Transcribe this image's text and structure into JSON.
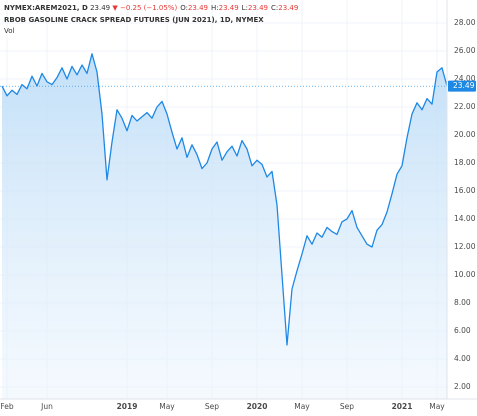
{
  "chart_data": {
    "type": "area",
    "header": {
      "symbol": "NYMEX:AREM2021, D",
      "last": "23.49",
      "change": "▼ −0.25 (−1.05%)",
      "ohlc": [
        [
          "O:",
          "23.49"
        ],
        [
          "H:",
          "23.49"
        ],
        [
          "L:",
          "23.49"
        ],
        [
          "C:",
          "23.49"
        ]
      ],
      "title": "RBOB GASOLINE CRACK SPREAD FUTURES (JUN 2021), 1D, NYMEX",
      "volume_label": "Vol"
    },
    "categories": [
      null,
      "Feb",
      null,
      null,
      null,
      null,
      null,
      null,
      null,
      "Jun",
      null,
      null,
      null,
      null,
      null,
      null,
      null,
      null,
      null,
      null,
      null,
      null,
      null,
      null,
      null,
      "2019",
      null,
      null,
      null,
      null,
      null,
      null,
      null,
      "May",
      null,
      null,
      null,
      null,
      null,
      null,
      null,
      null,
      "Sep",
      null,
      null,
      null,
      null,
      null,
      null,
      null,
      null,
      "2020",
      null,
      null,
      null,
      null,
      null,
      null,
      null,
      null,
      "May",
      null,
      null,
      null,
      null,
      null,
      null,
      null,
      null,
      "Sep",
      null,
      null,
      null,
      null,
      null,
      null,
      null,
      null,
      null,
      null,
      "2021",
      null,
      null,
      null,
      null,
      null,
      null,
      "May",
      null,
      null
    ],
    "series": [
      {
        "name": "NYMEX:AREM2021",
        "color": "#1e88e5",
        "values": [
          23.5,
          22.8,
          23.2,
          22.9,
          23.6,
          23.3,
          24.2,
          23.5,
          24.4,
          23.8,
          23.6,
          24.1,
          24.8,
          24.0,
          24.9,
          24.3,
          25.0,
          24.4,
          25.8,
          24.5,
          21.5,
          16.8,
          19.5,
          21.8,
          21.2,
          20.3,
          21.4,
          21.0,
          21.3,
          21.6,
          21.2,
          22.0,
          22.4,
          21.5,
          20.2,
          19.0,
          19.8,
          18.4,
          19.3,
          18.6,
          17.6,
          18.0,
          19.0,
          19.5,
          18.2,
          18.8,
          19.2,
          18.5,
          19.6,
          19.0,
          17.8,
          18.2,
          17.9,
          17.0,
          17.4,
          15.0,
          10.0,
          5.0,
          9.0,
          10.3,
          11.5,
          12.8,
          12.2,
          13.0,
          12.7,
          13.4,
          13.1,
          12.9,
          13.8,
          14.0,
          14.6,
          13.4,
          12.8,
          12.2,
          12.0,
          13.2,
          13.6,
          14.5,
          15.8,
          17.2,
          17.8,
          19.8,
          21.5,
          22.3,
          21.8,
          22.6,
          22.2,
          24.5,
          24.8,
          23.49
        ]
      }
    ],
    "ylim": [
      1,
      29
    ],
    "yticks": [
      {
        "value": 2,
        "label": "2.00"
      },
      {
        "value": 4,
        "label": "4.00"
      },
      {
        "value": 6,
        "label": "6.00"
      },
      {
        "value": 8,
        "label": "8.00"
      },
      {
        "value": 10,
        "label": "10.00"
      },
      {
        "value": 12,
        "label": "12.00"
      },
      {
        "value": 14,
        "label": "14.00"
      },
      {
        "value": 16,
        "label": "16.00"
      },
      {
        "value": 18,
        "label": "18.00"
      },
      {
        "value": 20,
        "label": "20.00"
      },
      {
        "value": 22,
        "label": "22.00"
      },
      {
        "value": 24,
        "label": "24.00"
      },
      {
        "value": 26,
        "label": "26.00"
      },
      {
        "value": 28,
        "label": "28.00"
      }
    ],
    "grid": true
  }
}
